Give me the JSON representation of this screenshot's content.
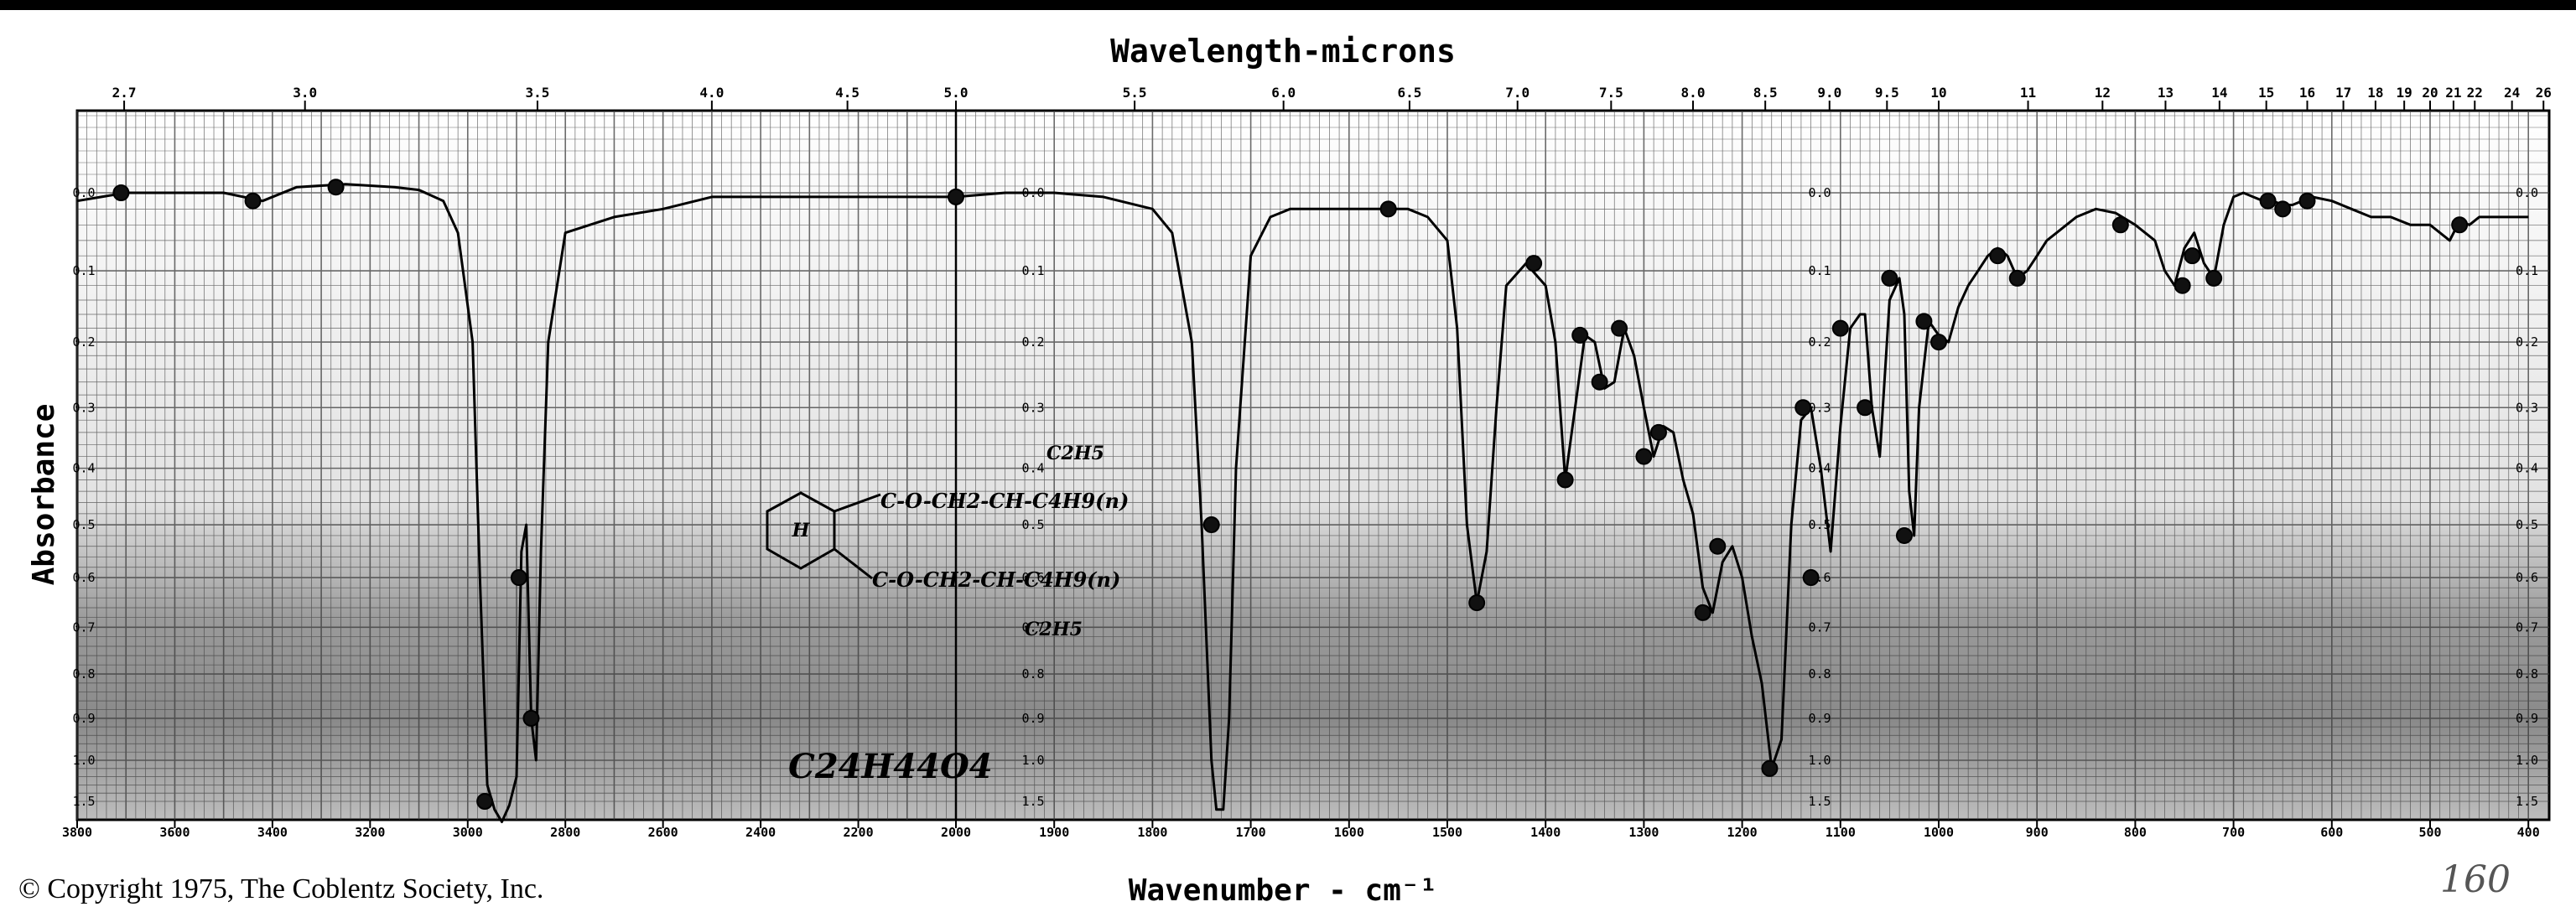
{
  "chart_data": {
    "type": "line",
    "title": "Wavelength-microns",
    "xlabel": "Wavenumber - cm⁻¹",
    "ylabel": "Absorbance",
    "x_unit": "cm-1",
    "x_range_segments": [
      {
        "from": 3800,
        "to": 2000
      },
      {
        "from": 2000,
        "to": 400
      }
    ],
    "bottom_ticks_segment1": [
      3800,
      3600,
      3400,
      3200,
      3000,
      2800,
      2600,
      2400,
      2200,
      2000
    ],
    "bottom_ticks_segment2": [
      1900,
      1800,
      1700,
      1600,
      1500,
      1400,
      1300,
      1200,
      1100,
      1000,
      900,
      800,
      700,
      600,
      500,
      400
    ],
    "top_ticks": [
      "2.7",
      "3.0",
      "3.5",
      "4.0",
      "4.5",
      "5.0",
      "5.5",
      "6.0",
      "6.5",
      "7.0",
      "7.5",
      "8.0",
      "8.5",
      "9.0",
      "9.5",
      "10",
      "11",
      "12",
      "13",
      "14",
      "15",
      "16",
      "17",
      "18",
      "19",
      "20",
      "21",
      "22",
      "24",
      "26"
    ],
    "top_tick_microns": [
      2.7,
      3.0,
      3.5,
      4.0,
      4.5,
      5.0,
      5.5,
      6.0,
      6.5,
      7.0,
      7.5,
      8.0,
      8.5,
      9.0,
      9.5,
      10,
      11,
      12,
      13,
      14,
      15,
      16,
      17,
      18,
      19,
      20,
      21,
      22,
      24,
      26
    ],
    "absorbance_ticks": [
      "0.0",
      "0.1",
      "0.2",
      "0.3",
      "0.4",
      "0.5",
      "0.6",
      "0.7",
      "0.8",
      "0.9",
      "1.0",
      "1.5"
    ],
    "absorbance_values": [
      0.0,
      0.1,
      0.2,
      0.3,
      0.4,
      0.5,
      0.6,
      0.7,
      0.8,
      0.9,
      1.0,
      1.5
    ],
    "grid": true,
    "series": [
      {
        "x": [
          3800,
          3700,
          3600,
          3500,
          3420,
          3350,
          3250,
          3150,
          3100,
          3050,
          3020,
          2990,
          2975,
          2960,
          2945,
          2930,
          2915,
          2900,
          2890,
          2880,
          2870,
          2860,
          2850,
          2835,
          2800,
          2700,
          2600,
          2500,
          2400,
          2300,
          2200,
          2100,
          2000,
          1950,
          1900,
          1850,
          1800,
          1780,
          1760,
          1750,
          1740,
          1735,
          1728,
          1722,
          1715,
          1700,
          1680,
          1660,
          1640,
          1620,
          1600,
          1580,
          1560,
          1540,
          1520,
          1500,
          1490,
          1480,
          1470,
          1460,
          1450,
          1440,
          1420,
          1400,
          1390,
          1380,
          1370,
          1360,
          1350,
          1340,
          1330,
          1320,
          1310,
          1300,
          1290,
          1280,
          1270,
          1260,
          1250,
          1240,
          1230,
          1220,
          1210,
          1200,
          1190,
          1180,
          1170,
          1160,
          1150,
          1140,
          1130,
          1120,
          1110,
          1100,
          1090,
          1080,
          1075,
          1068,
          1060,
          1050,
          1040,
          1035,
          1030,
          1025,
          1020,
          1010,
          1000,
          990,
          980,
          970,
          960,
          950,
          940,
          930,
          920,
          910,
          900,
          890,
          880,
          860,
          840,
          820,
          800,
          780,
          770,
          760,
          750,
          740,
          730,
          720,
          710,
          700,
          690,
          680,
          670,
          660,
          650,
          640,
          630,
          620,
          600,
          580,
          560,
          540,
          520,
          500,
          480,
          470,
          460,
          450,
          440,
          420,
          400
        ],
        "y": [
          0.01,
          0.0,
          0.0,
          0.0,
          0.01,
          -0.01,
          -0.015,
          -0.01,
          -0.005,
          0.01,
          0.05,
          0.2,
          0.6,
          1.3,
          1.6,
          1.75,
          1.55,
          1.2,
          0.55,
          0.5,
          0.9,
          1.0,
          0.55,
          0.2,
          0.05,
          0.03,
          0.02,
          0.005,
          0.005,
          0.005,
          0.005,
          0.005,
          0.005,
          0.0,
          0.0,
          0.005,
          0.02,
          0.05,
          0.2,
          0.5,
          1.0,
          1.6,
          1.6,
          0.9,
          0.4,
          0.08,
          0.03,
          0.02,
          0.02,
          0.02,
          0.02,
          0.02,
          0.02,
          0.02,
          0.03,
          0.06,
          0.18,
          0.5,
          0.65,
          0.55,
          0.3,
          0.12,
          0.09,
          0.12,
          0.2,
          0.42,
          0.3,
          0.19,
          0.2,
          0.27,
          0.26,
          0.18,
          0.22,
          0.3,
          0.38,
          0.33,
          0.34,
          0.42,
          0.48,
          0.62,
          0.67,
          0.57,
          0.54,
          0.6,
          0.72,
          0.82,
          1.1,
          0.95,
          0.5,
          0.32,
          0.3,
          0.4,
          0.55,
          0.33,
          0.18,
          0.16,
          0.16,
          0.3,
          0.38,
          0.14,
          0.11,
          0.16,
          0.44,
          0.52,
          0.3,
          0.17,
          0.19,
          0.2,
          0.15,
          0.12,
          0.1,
          0.08,
          0.07,
          0.08,
          0.11,
          0.1,
          0.08,
          0.06,
          0.05,
          0.03,
          0.02,
          0.025,
          0.04,
          0.06,
          0.1,
          0.12,
          0.07,
          0.05,
          0.09,
          0.11,
          0.04,
          0.005,
          0.0,
          0.005,
          0.01,
          0.01,
          0.015,
          0.015,
          0.01,
          0.005,
          0.01,
          0.02,
          0.03,
          0.03,
          0.04,
          0.04,
          0.06,
          0.035,
          0.04,
          0.03,
          0.03,
          0.03,
          0.03
        ]
      }
    ],
    "markers": [
      {
        "x": 3710,
        "y": 0.0
      },
      {
        "x": 3440,
        "y": 0.01
      },
      {
        "x": 3270,
        "y": -0.01
      },
      {
        "x": 2965,
        "y": 1.5
      },
      {
        "x": 2895,
        "y": 0.6
      },
      {
        "x": 2870,
        "y": 0.9
      },
      {
        "x": 2000,
        "y": 0.005
      },
      {
        "x": 1740,
        "y": 0.5
      },
      {
        "x": 1560,
        "y": 0.02
      },
      {
        "x": 1470,
        "y": 0.65
      },
      {
        "x": 1412,
        "y": 0.09
      },
      {
        "x": 1380,
        "y": 0.42
      },
      {
        "x": 1365,
        "y": 0.19
      },
      {
        "x": 1345,
        "y": 0.26
      },
      {
        "x": 1325,
        "y": 0.18
      },
      {
        "x": 1300,
        "y": 0.38
      },
      {
        "x": 1285,
        "y": 0.34
      },
      {
        "x": 1240,
        "y": 0.67
      },
      {
        "x": 1225,
        "y": 0.54
      },
      {
        "x": 1172,
        "y": 1.1
      },
      {
        "x": 1138,
        "y": 0.3
      },
      {
        "x": 1130,
        "y": 0.6
      },
      {
        "x": 1100,
        "y": 0.18
      },
      {
        "x": 1075,
        "y": 0.3
      },
      {
        "x": 1050,
        "y": 0.11
      },
      {
        "x": 1035,
        "y": 0.52
      },
      {
        "x": 1015,
        "y": 0.17
      },
      {
        "x": 1000,
        "y": 0.2
      },
      {
        "x": 940,
        "y": 0.08
      },
      {
        "x": 920,
        "y": 0.11
      },
      {
        "x": 815,
        "y": 0.04
      },
      {
        "x": 752,
        "y": 0.12
      },
      {
        "x": 742,
        "y": 0.08
      },
      {
        "x": 720,
        "y": 0.11
      },
      {
        "x": 665,
        "y": 0.01
      },
      {
        "x": 650,
        "y": 0.02
      },
      {
        "x": 625,
        "y": 0.01
      },
      {
        "x": 470,
        "y": 0.04
      }
    ]
  },
  "annotations": {
    "structure_line1": "C2H5",
    "structure_line2": "C-O-CH2-CH-C4H9(n)",
    "structure_ring": "H",
    "structure_line3": "C-O-CH2-CH-C4H9(n)",
    "structure_line4": "C2H5",
    "formula": "C24H44O4",
    "corner_number": "160"
  },
  "copyright": "© Copyright 1975, The Coblentz Society, Inc."
}
